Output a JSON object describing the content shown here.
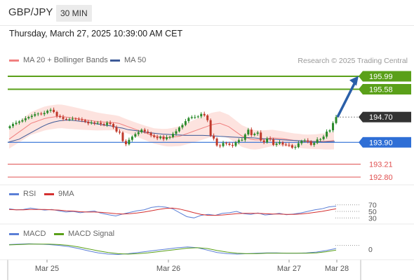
{
  "header": {
    "symbol": "GBP/JPY",
    "timeframe": "30 MIN",
    "datetime": "Thursday, March 27, 2025 10:39:00 AM CET",
    "credit": "Research © 2025 Trading Central"
  },
  "colors": {
    "up": "#2a8a2a",
    "down": "#c0392b",
    "ma20": "#f08080",
    "band": "#fde0dc",
    "ma50": "#3d5a98",
    "green_level": "#5aa019",
    "blue_level": "#2f6fd6",
    "red_level": "#e05050",
    "current": "#333333",
    "rsi": "#5b7fd6",
    "rsi_ma": "#d43030",
    "macd": "#5b7fd6",
    "macd_signal": "#5aa019",
    "arrow": "#2a5fa8"
  },
  "legends": {
    "ma20": "MA 20 + Bollinger Bands",
    "ma50": "MA 50",
    "rsi": "RSI",
    "rsi_ma": "9MA",
    "macd": "MACD",
    "macd_signal": "MACD Signal"
  },
  "chart_data": [
    {
      "type": "candlestick",
      "title": "GBP/JPY",
      "x_labels": [
        "Mar 25",
        "Mar 26",
        "Mar 27",
        "Mar 28"
      ],
      "ylim": [
        192.6,
        196.3
      ],
      "levels": [
        {
          "value": 195.99,
          "label": "195.99",
          "kind": "resistance"
        },
        {
          "value": 195.58,
          "label": "195.58",
          "kind": "resistance"
        },
        {
          "value": 194.7,
          "label": "194.70",
          "kind": "current"
        },
        {
          "value": 193.9,
          "label": "193.90",
          "kind": "pivot"
        },
        {
          "value": 193.21,
          "label": "193.21",
          "kind": "support"
        },
        {
          "value": 192.8,
          "label": "192.80",
          "kind": "support"
        }
      ],
      "closes": [
        194.41,
        194.48,
        194.52,
        194.56,
        194.6,
        194.66,
        194.7,
        194.74,
        194.79,
        194.81,
        194.79,
        194.83,
        194.9,
        194.93,
        194.86,
        194.73,
        194.7,
        194.64,
        194.63,
        194.63,
        194.65,
        194.64,
        194.62,
        194.6,
        194.55,
        194.5,
        194.53,
        194.5,
        194.52,
        194.48,
        194.45,
        194.52,
        194.48,
        194.38,
        194.24,
        194.21,
        193.94,
        193.84,
        193.98,
        194.08,
        194.16,
        194.22,
        194.3,
        194.24,
        194.2,
        194.12,
        194.07,
        194.03,
        194.08,
        194.0,
        194.06,
        194.07,
        194.17,
        194.25,
        194.37,
        194.45,
        194.57,
        194.67,
        194.7,
        194.7,
        194.72,
        194.8,
        194.75,
        194.6,
        194.11,
        194.02,
        193.8,
        193.78,
        193.88,
        193.86,
        193.82,
        193.79,
        193.9,
        193.97,
        193.98,
        194.15,
        194.3,
        194.13,
        194.17,
        194.21,
        193.96,
        193.9,
        194.02,
        194.0,
        193.82,
        193.86,
        193.9,
        193.83,
        193.82,
        193.81,
        193.73,
        193.75,
        193.87,
        193.94,
        193.96,
        193.93,
        193.82,
        193.88,
        193.99,
        194.0,
        194.08,
        194.24,
        194.28,
        194.51,
        194.7
      ],
      "ma20": [
        194.0,
        194.1,
        194.2,
        194.3,
        194.4,
        194.5,
        194.55,
        194.6,
        194.65,
        194.68,
        194.7,
        194.72,
        194.72,
        194.7,
        194.68,
        194.66,
        194.64,
        194.62,
        194.6,
        194.58,
        194.56,
        194.55,
        194.54,
        194.53,
        194.52,
        194.5,
        194.45,
        194.4,
        194.35,
        194.3,
        194.25,
        194.2,
        194.15,
        194.1,
        194.08,
        194.06,
        194.05,
        194.06,
        194.08,
        194.1,
        194.15,
        194.2,
        194.25,
        194.3,
        194.35,
        194.4,
        194.45,
        194.48,
        194.5,
        194.45,
        194.4,
        194.3,
        194.2,
        194.1,
        194.05,
        194.0,
        193.98,
        193.98,
        194.0,
        194.02,
        194.04,
        194.03,
        194.02,
        194.0,
        193.98,
        193.96,
        193.95,
        193.93,
        193.92,
        193.92,
        193.92,
        193.93,
        193.93,
        193.94,
        193.96
      ],
      "ma50": [
        193.9,
        193.95,
        194.0,
        194.1,
        194.2,
        194.3,
        194.4,
        194.48,
        194.54,
        194.58,
        194.6,
        194.6,
        194.58,
        194.56,
        194.54,
        194.5,
        194.47,
        194.44,
        194.42,
        194.38,
        194.35,
        194.3,
        194.28,
        194.25,
        194.22,
        194.2,
        194.18,
        194.16,
        194.15,
        194.14,
        194.13,
        194.12,
        194.12,
        194.12,
        194.12,
        194.11,
        194.1,
        194.09,
        194.08,
        194.07,
        194.06,
        194.05,
        194.05,
        194.04,
        194.02,
        194.01,
        194.0,
        193.99,
        193.98,
        193.97,
        193.96,
        193.95,
        193.94,
        193.93,
        193.92,
        193.91,
        193.92,
        193.93
      ]
    },
    {
      "type": "line",
      "title": "RSI",
      "ylim": [
        20,
        80
      ],
      "y_ticks": [
        70,
        50,
        30
      ],
      "series": [
        {
          "name": "RSI",
          "values": [
            58,
            55,
            56,
            60,
            57,
            54,
            56,
            52,
            48,
            50,
            46,
            49,
            51,
            44,
            40,
            36,
            42,
            47,
            52,
            55,
            62,
            65,
            63,
            58,
            46,
            34,
            30,
            38,
            41,
            38,
            44,
            46,
            50,
            43,
            41,
            45,
            39,
            41,
            44,
            40,
            42,
            45,
            50,
            55,
            58,
            64,
            66
          ]
        },
        {
          "name": "9MA",
          "values": [
            56,
            55,
            55,
            56,
            56,
            56,
            55,
            54,
            52,
            51,
            49,
            48,
            48,
            47,
            45,
            43,
            42,
            43,
            45,
            48,
            52,
            56,
            59,
            60,
            57,
            52,
            46,
            41,
            38,
            38,
            39,
            41,
            43,
            44,
            44,
            44,
            43,
            42,
            42,
            41,
            41,
            42,
            44,
            47,
            50,
            54,
            58
          ]
        }
      ]
    },
    {
      "type": "line",
      "title": "MACD",
      "ylim": [
        -0.35,
        0.25
      ],
      "y_ticks": [
        0
      ],
      "series": [
        {
          "name": "MACD",
          "values": [
            0.12,
            0.13,
            0.14,
            0.13,
            0.12,
            0.1,
            0.07,
            0.02,
            -0.04,
            -0.09,
            -0.12,
            -0.13,
            -0.11,
            -0.08,
            -0.05,
            -0.02,
            0.01,
            0.04,
            0.06,
            0.04,
            -0.02,
            -0.08,
            -0.11,
            -0.12,
            -0.11,
            -0.1,
            -0.09,
            -0.09,
            -0.1,
            -0.1,
            -0.09,
            -0.07,
            -0.03,
            0.02
          ]
        },
        {
          "name": "MACD Signal",
          "values": [
            0.11,
            0.12,
            0.13,
            0.13,
            0.13,
            0.12,
            0.1,
            0.06,
            0.01,
            -0.04,
            -0.08,
            -0.11,
            -0.12,
            -0.11,
            -0.09,
            -0.06,
            -0.03,
            0.0,
            0.03,
            0.04,
            0.02,
            -0.03,
            -0.07,
            -0.1,
            -0.11,
            -0.11,
            -0.1,
            -0.1,
            -0.1,
            -0.1,
            -0.1,
            -0.09,
            -0.06,
            -0.02
          ]
        }
      ]
    }
  ]
}
